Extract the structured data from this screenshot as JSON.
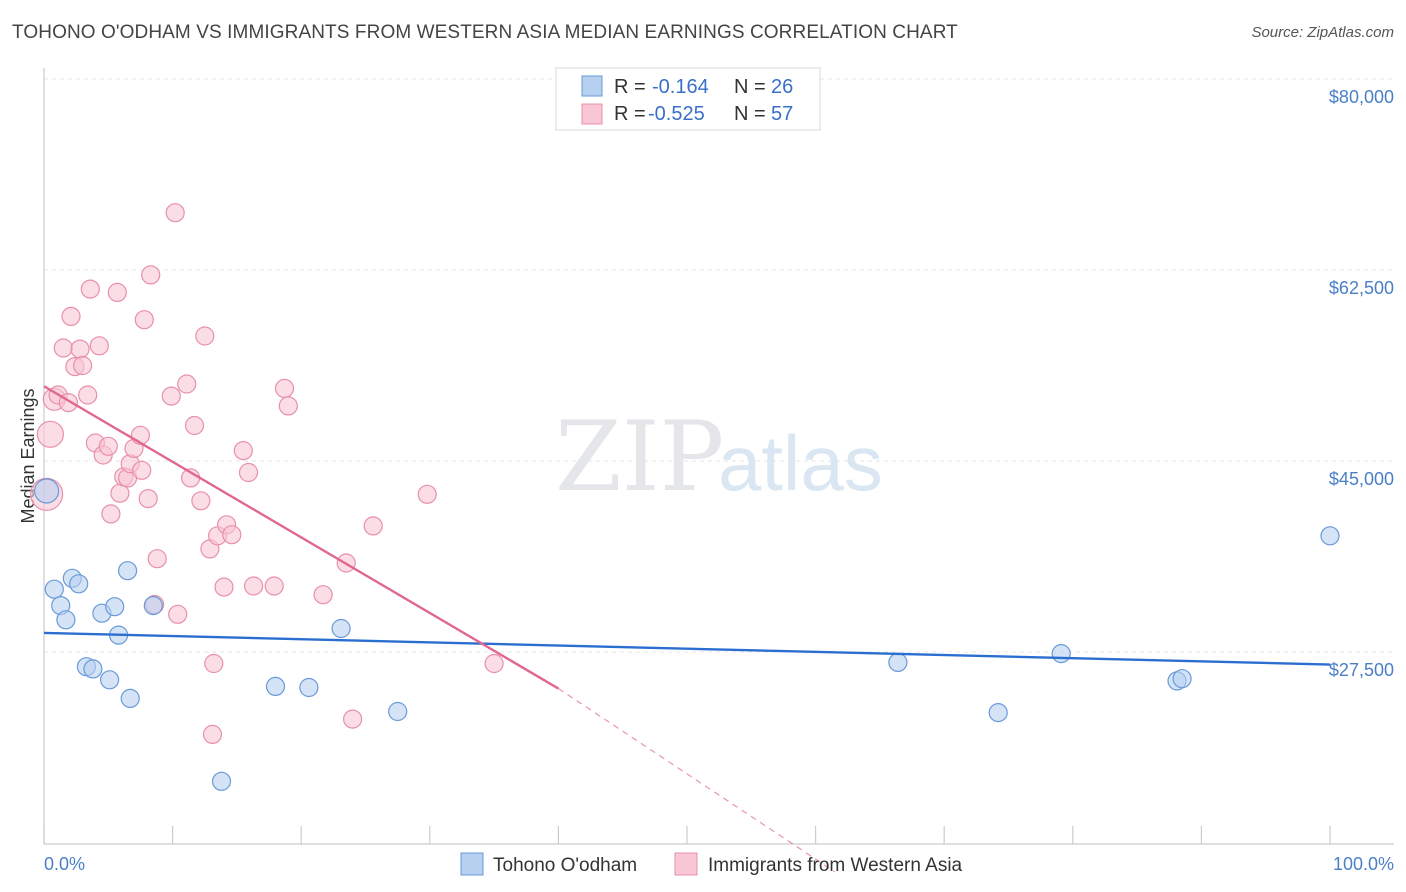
{
  "title": "TOHONO O'ODHAM VS IMMIGRANTS FROM WESTERN ASIA MEDIAN EARNINGS CORRELATION CHART",
  "source": "Source: ZipAtlas.com",
  "watermark": {
    "zip": "ZIP",
    "atlas": "atlas"
  },
  "colors": {
    "blue_fill": "#b8d0f0",
    "blue_stroke": "#6a9ad8",
    "blue_line": "#2a6fd0",
    "pink_fill": "#f8c6d4",
    "pink_stroke": "#e890aa",
    "pink_line": "#e06890",
    "tick_text": "#4a7fc8"
  },
  "legend": {
    "rows": [
      {
        "r_label": "R =",
        "r_value": "-0.164",
        "n_label": "N =",
        "n_value": "26"
      },
      {
        "r_label": "R =",
        "r_value": "-0.525",
        "n_label": "N =",
        "n_value": "57"
      }
    ]
  },
  "chart_data": {
    "type": "scatter",
    "title": "TOHONO O'ODHAM VS IMMIGRANTS FROM WESTERN ASIA MEDIAN EARNINGS CORRELATION CHART",
    "xlabel": "",
    "ylabel": "Median Earnings",
    "xlim": [
      0,
      100
    ],
    "ylim": [
      9000,
      81500
    ],
    "x_tick_labels": [
      "0.0%",
      "100.0%"
    ],
    "y_ticks": [
      {
        "value": 80000,
        "label": "$80,000"
      },
      {
        "value": 62500,
        "label": "$62,500"
      },
      {
        "value": 45000,
        "label": "$45,000"
      },
      {
        "value": 27500,
        "label": "$27,500"
      }
    ],
    "grid": true,
    "legend_position": "bottom",
    "series": [
      {
        "name": "Tohono O'odham",
        "color": "blue",
        "points": [
          [
            0.2,
            43900,
            12
          ],
          [
            0.8,
            34900,
            9
          ],
          [
            1.3,
            33400,
            9
          ],
          [
            1.7,
            32100,
            9
          ],
          [
            2.2,
            35900,
            9
          ],
          [
            2.7,
            35400,
            9
          ],
          [
            3.3,
            27800,
            9
          ],
          [
            3.8,
            27600,
            9
          ],
          [
            4.5,
            32700,
            9
          ],
          [
            5.1,
            26600,
            9
          ],
          [
            5.5,
            33300,
            9
          ],
          [
            5.8,
            30700,
            9
          ],
          [
            6.5,
            36600,
            9
          ],
          [
            6.7,
            24900,
            9
          ],
          [
            8.5,
            33400,
            9
          ],
          [
            13.8,
            17300,
            9
          ],
          [
            18.0,
            26000,
            9
          ],
          [
            20.6,
            25900,
            9
          ],
          [
            23.1,
            31300,
            9
          ],
          [
            27.5,
            23700,
            9
          ],
          [
            66.4,
            28200,
            9
          ],
          [
            74.2,
            23600,
            9
          ],
          [
            79.1,
            29000,
            9
          ],
          [
            88.1,
            26500,
            9
          ],
          [
            88.5,
            26700,
            9
          ],
          [
            100.0,
            39800,
            9
          ]
        ],
        "trend": {
          "x1": 0,
          "y1": 30900,
          "x2": 100,
          "y2": 28000
        }
      },
      {
        "name": "Immigrants from Western Asia",
        "color": "pink",
        "points": [
          [
            0.2,
            43600,
            16
          ],
          [
            0.5,
            49100,
            13
          ],
          [
            0.8,
            52300,
            11
          ],
          [
            1.1,
            52700,
            9
          ],
          [
            1.5,
            57000,
            9
          ],
          [
            1.9,
            52000,
            9
          ],
          [
            2.1,
            59900,
            9
          ],
          [
            2.4,
            55300,
            9
          ],
          [
            2.8,
            56900,
            9
          ],
          [
            3.0,
            55400,
            9
          ],
          [
            3.4,
            52700,
            9
          ],
          [
            3.6,
            62400,
            9
          ],
          [
            4.0,
            48300,
            9
          ],
          [
            4.3,
            57200,
            9
          ],
          [
            4.6,
            47200,
            9
          ],
          [
            5.0,
            48000,
            9
          ],
          [
            5.2,
            41800,
            9
          ],
          [
            5.7,
            62100,
            9
          ],
          [
            5.9,
            43700,
            9
          ],
          [
            6.2,
            45200,
            9
          ],
          [
            6.5,
            45100,
            9
          ],
          [
            6.7,
            46400,
            9
          ],
          [
            7.0,
            47800,
            9
          ],
          [
            7.5,
            49000,
            9
          ],
          [
            7.6,
            45800,
            9
          ],
          [
            7.8,
            59600,
            9
          ],
          [
            8.1,
            43200,
            9
          ],
          [
            8.3,
            63700,
            9
          ],
          [
            8.8,
            37700,
            9
          ],
          [
            8.6,
            33500,
            9
          ],
          [
            10.2,
            69400,
            9
          ],
          [
            9.9,
            52600,
            9
          ],
          [
            10.4,
            32600,
            9
          ],
          [
            11.1,
            53700,
            9
          ],
          [
            11.4,
            45100,
            9
          ],
          [
            11.7,
            49900,
            9
          ],
          [
            12.2,
            43000,
            9
          ],
          [
            12.5,
            58100,
            9
          ],
          [
            12.9,
            38600,
            9
          ],
          [
            13.2,
            28100,
            9
          ],
          [
            13.1,
            21600,
            9
          ],
          [
            13.5,
            39800,
            9
          ],
          [
            14.2,
            40800,
            9
          ],
          [
            14.0,
            35100,
            9
          ],
          [
            14.6,
            39900,
            9
          ],
          [
            15.5,
            47600,
            9
          ],
          [
            15.9,
            45600,
            9
          ],
          [
            16.3,
            35200,
            9
          ],
          [
            17.9,
            35200,
            9
          ],
          [
            18.7,
            53300,
            9
          ],
          [
            19.0,
            51700,
            9
          ],
          [
            21.7,
            34400,
            9
          ],
          [
            23.5,
            37300,
            9
          ],
          [
            24.0,
            23000,
            9
          ],
          [
            25.6,
            40700,
            9
          ],
          [
            29.8,
            43600,
            9
          ],
          [
            35.0,
            28100,
            9
          ]
        ],
        "trend": {
          "x1": 0,
          "y1": 53500,
          "x2": 40,
          "y2": 25800
        },
        "trend_dashed": {
          "x1": 40,
          "y1": 25800,
          "x2": 61.5,
          "y2": 9000
        }
      }
    ]
  }
}
